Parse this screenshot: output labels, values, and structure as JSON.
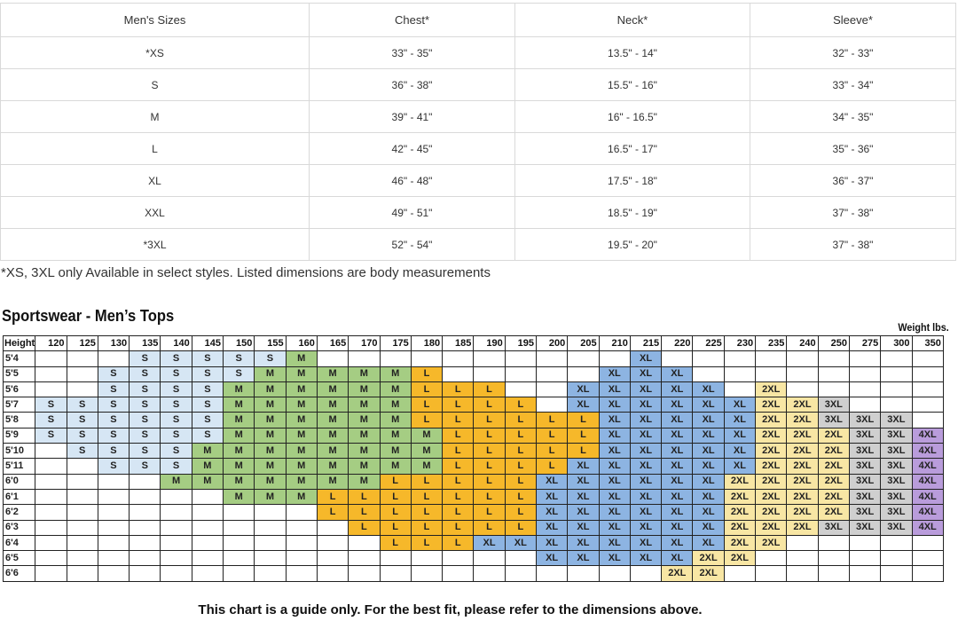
{
  "measurements": {
    "headers": [
      "Men's Sizes",
      "Chest*",
      "Neck*",
      "Sleeve*"
    ],
    "rows": [
      [
        "*XS",
        "33\" - 35\"",
        "13.5\" - 14\"",
        "32\" - 33\""
      ],
      [
        "S",
        "36\" - 38\"",
        "15.5\" - 16\"",
        "33\" - 34\""
      ],
      [
        "M",
        "39\" - 41\"",
        "16\" - 16.5\"",
        "34\" - 35\""
      ],
      [
        "L",
        "42\" - 45\"",
        "16.5\" - 17\"",
        "35\" - 36\""
      ],
      [
        "XL",
        "46\" - 48\"",
        "17.5\" - 18\"",
        "36\" - 37\""
      ],
      [
        "XXL",
        "49\" - 51\"",
        "18.5\" - 19\"",
        "37\" - 38\""
      ],
      [
        "*3XL",
        "52\" - 54\"",
        "19.5\" - 20\"",
        "37\" - 38\""
      ]
    ]
  },
  "note": "*XS, 3XL only Available in select styles. Listed dimensions are body measurements",
  "size_grid": {
    "title": "Sportswear - Men’s Tops",
    "weight_unit": "Weight lbs.",
    "corner_label": "Height",
    "weights": [
      "120",
      "125",
      "130",
      "135",
      "140",
      "145",
      "150",
      "155",
      "160",
      "165",
      "170",
      "175",
      "180",
      "185",
      "190",
      "195",
      "200",
      "205",
      "210",
      "215",
      "220",
      "225",
      "230",
      "235",
      "240",
      "250",
      "275",
      "300",
      "350"
    ],
    "rows": [
      {
        "height": "5'4",
        "sizes": [
          "",
          "",
          "",
          "S",
          "S",
          "S",
          "S",
          "S",
          "M",
          "",
          "",
          "",
          "",
          "",
          "",
          "",
          "",
          "",
          "",
          "XL",
          "",
          "",
          "",
          "",
          "",
          "",
          "",
          "",
          ""
        ]
      },
      {
        "height": "5'5",
        "sizes": [
          "",
          "",
          "S",
          "S",
          "S",
          "S",
          "S",
          "M",
          "M",
          "M",
          "M",
          "M",
          "L",
          "",
          "",
          "",
          "",
          "",
          "XL",
          "XL",
          "XL",
          "",
          "",
          "",
          "",
          "",
          "",
          "",
          ""
        ]
      },
      {
        "height": "5'6",
        "sizes": [
          "",
          "",
          "S",
          "S",
          "S",
          "S",
          "M",
          "M",
          "M",
          "M",
          "M",
          "M",
          "L",
          "L",
          "L",
          "",
          "",
          "XL",
          "XL",
          "XL",
          "XL",
          "XL",
          "",
          "2XL",
          "",
          "",
          "",
          "",
          ""
        ]
      },
      {
        "height": "5'7",
        "sizes": [
          "S",
          "S",
          "S",
          "S",
          "S",
          "S",
          "M",
          "M",
          "M",
          "M",
          "M",
          "M",
          "L",
          "L",
          "L",
          "L",
          "",
          "XL",
          "XL",
          "XL",
          "XL",
          "XL",
          "XL",
          "2XL",
          "2XL",
          "3XL",
          "",
          "",
          ""
        ]
      },
      {
        "height": "5'8",
        "sizes": [
          "S",
          "S",
          "S",
          "S",
          "S",
          "S",
          "M",
          "M",
          "M",
          "M",
          "M",
          "M",
          "L",
          "L",
          "L",
          "L",
          "L",
          "L",
          "XL",
          "XL",
          "XL",
          "XL",
          "XL",
          "2XL",
          "2XL",
          "3XL",
          "3XL",
          "3XL",
          ""
        ]
      },
      {
        "height": "5'9",
        "sizes": [
          "S",
          "S",
          "S",
          "S",
          "S",
          "S",
          "M",
          "M",
          "M",
          "M",
          "M",
          "M",
          "M",
          "L",
          "L",
          "L",
          "L",
          "L",
          "XL",
          "XL",
          "XL",
          "XL",
          "XL",
          "2XL",
          "2XL",
          "2XL",
          "3XL",
          "3XL",
          "4XL"
        ]
      },
      {
        "height": "5'10",
        "sizes": [
          "",
          "S",
          "S",
          "S",
          "S",
          "M",
          "M",
          "M",
          "M",
          "M",
          "M",
          "M",
          "M",
          "L",
          "L",
          "L",
          "L",
          "L",
          "XL",
          "XL",
          "XL",
          "XL",
          "XL",
          "2XL",
          "2XL",
          "2XL",
          "3XL",
          "3XL",
          "4XL"
        ]
      },
      {
        "height": "5'11",
        "sizes": [
          "",
          "",
          "S",
          "S",
          "S",
          "M",
          "M",
          "M",
          "M",
          "M",
          "M",
          "M",
          "M",
          "L",
          "L",
          "L",
          "L",
          "XL",
          "XL",
          "XL",
          "XL",
          "XL",
          "XL",
          "2XL",
          "2XL",
          "2XL",
          "3XL",
          "3XL",
          "4XL"
        ]
      },
      {
        "height": "6'0",
        "sizes": [
          "",
          "",
          "",
          "",
          "M",
          "M",
          "M",
          "M",
          "M",
          "M",
          "M",
          "L",
          "L",
          "L",
          "L",
          "L",
          "XL",
          "XL",
          "XL",
          "XL",
          "XL",
          "XL",
          "2XL",
          "2XL",
          "2XL",
          "2XL",
          "3XL",
          "3XL",
          "4XL"
        ]
      },
      {
        "height": "6'1",
        "sizes": [
          "",
          "",
          "",
          "",
          "",
          "",
          "M",
          "M",
          "M",
          "L",
          "L",
          "L",
          "L",
          "L",
          "L",
          "L",
          "XL",
          "XL",
          "XL",
          "XL",
          "XL",
          "XL",
          "2XL",
          "2XL",
          "2XL",
          "2XL",
          "3XL",
          "3XL",
          "4XL"
        ]
      },
      {
        "height": "6'2",
        "sizes": [
          "",
          "",
          "",
          "",
          "",
          "",
          "",
          "",
          "",
          "L",
          "L",
          "L",
          "L",
          "L",
          "L",
          "L",
          "XL",
          "XL",
          "XL",
          "XL",
          "XL",
          "XL",
          "2XL",
          "2XL",
          "2XL",
          "2XL",
          "3XL",
          "3XL",
          "4XL"
        ]
      },
      {
        "height": "6'3",
        "sizes": [
          "",
          "",
          "",
          "",
          "",
          "",
          "",
          "",
          "",
          "",
          "L",
          "L",
          "L",
          "L",
          "L",
          "L",
          "XL",
          "XL",
          "XL",
          "XL",
          "XL",
          "XL",
          "2XL",
          "2XL",
          "2XL",
          "3XL",
          "3XL",
          "3XL",
          "4XL"
        ]
      },
      {
        "height": "6'4",
        "sizes": [
          "",
          "",
          "",
          "",
          "",
          "",
          "",
          "",
          "",
          "",
          "",
          "L",
          "L",
          "L",
          "XL",
          "XL",
          "XL",
          "XL",
          "XL",
          "XL",
          "XL",
          "XL",
          "2XL",
          "2XL",
          "",
          "",
          "",
          "",
          ""
        ]
      },
      {
        "height": "6'5",
        "sizes": [
          "",
          "",
          "",
          "",
          "",
          "",
          "",
          "",
          "",
          "",
          "",
          "",
          "",
          "",
          "",
          "",
          "XL",
          "XL",
          "XL",
          "XL",
          "XL",
          "2XL",
          "2XL",
          "",
          "",
          "",
          "",
          "",
          ""
        ]
      },
      {
        "height": "6'6",
        "sizes": [
          "",
          "",
          "",
          "",
          "",
          "",
          "",
          "",
          "",
          "",
          "",
          "",
          "",
          "",
          "",
          "",
          "",
          "",
          "",
          "",
          "2XL",
          "2XL",
          "",
          "",
          "",
          "",
          "",
          "",
          ""
        ]
      }
    ]
  },
  "colors": {
    "S": "#d6e6f4",
    "M": "#a5cd83",
    "L": "#f6b82a",
    "XL": "#8db4e2",
    "2XL": "#f8e6a4",
    "3XL": "#cfcfcf",
    "4XL": "#b99cdb"
  },
  "footer": "This chart is a guide only.  For the best fit, please refer to the dimensions above."
}
